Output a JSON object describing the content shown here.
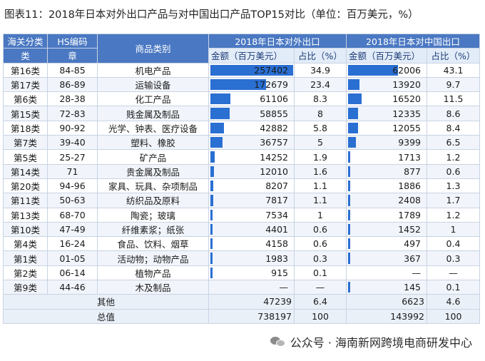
{
  "title": "图表11：2018年日本对外出口产品与对中国出口产品TOP15对比（单位：百万美元，%）",
  "headers": {
    "col1_top": "海关分类",
    "col1_bottom": "类",
    "col2_top": "HS编码",
    "col2_bottom": "章",
    "col3": "商品类别",
    "group_world": "2018年日本对外出口",
    "group_china": "2018年日本对中国出口",
    "amount": "金额（百万美元）",
    "share": "占比（%）"
  },
  "rows": [
    {
      "cls": "第16类",
      "hs": "84-85",
      "name": "机电产品",
      "world_amount": "257402",
      "world_share": "34.9",
      "china_amount": "62006",
      "china_share": "43.1",
      "world_value": 257402,
      "china_value": 62006
    },
    {
      "cls": "第17类",
      "hs": "86-89",
      "name": "运输设备",
      "world_amount": "172679",
      "world_share": "23.4",
      "china_amount": "13920",
      "china_share": "9.7",
      "world_value": 172679,
      "china_value": 13920
    },
    {
      "cls": "第6类",
      "hs": "28-38",
      "name": "化工产品",
      "world_amount": "61106",
      "world_share": "8.3",
      "china_amount": "16520",
      "china_share": "11.5",
      "world_value": 61106,
      "china_value": 16520
    },
    {
      "cls": "第15类",
      "hs": "72-83",
      "name": "贱金属及制品",
      "world_amount": "58855",
      "world_share": "8",
      "china_amount": "12335",
      "china_share": "8.6",
      "world_value": 58855,
      "china_value": 12335
    },
    {
      "cls": "第18类",
      "hs": "90-92",
      "name": "光学、钟表、医疗设备",
      "world_amount": "42882",
      "world_share": "5.8",
      "china_amount": "12055",
      "china_share": "8.4",
      "world_value": 42882,
      "china_value": 12055
    },
    {
      "cls": "第7类",
      "hs": "39-40",
      "name": "塑料、橡胶",
      "world_amount": "36757",
      "world_share": "5",
      "china_amount": "9399",
      "china_share": "6.5",
      "world_value": 36757,
      "china_value": 9399
    },
    {
      "cls": "第5类",
      "hs": "25-27",
      "name": "矿产品",
      "world_amount": "14252",
      "world_share": "1.9",
      "china_amount": "1713",
      "china_share": "1.2",
      "world_value": 14252,
      "china_value": 1713
    },
    {
      "cls": "第14类",
      "hs": "71",
      "name": "贵金属及制品",
      "world_amount": "12010",
      "world_share": "1.6",
      "china_amount": "877",
      "china_share": "0.6",
      "world_value": 12010,
      "china_value": 877
    },
    {
      "cls": "第20类",
      "hs": "94-96",
      "name": "家具、玩具、杂项制品",
      "world_amount": "8207",
      "world_share": "1.1",
      "china_amount": "1886",
      "china_share": "1.3",
      "world_value": 8207,
      "china_value": 1886
    },
    {
      "cls": "第11类",
      "hs": "50-63",
      "name": "纺织品及原料",
      "world_amount": "7817",
      "world_share": "1.1",
      "china_amount": "2408",
      "china_share": "1.7",
      "world_value": 7817,
      "china_value": 2408
    },
    {
      "cls": "第13类",
      "hs": "68-70",
      "name": "陶瓷；玻璃",
      "world_amount": "7534",
      "world_share": "1",
      "china_amount": "1789",
      "china_share": "1.2",
      "world_value": 7534,
      "china_value": 1789
    },
    {
      "cls": "第10类",
      "hs": "47-49",
      "name": "纤维素浆；纸张",
      "world_amount": "4401",
      "world_share": "0.6",
      "china_amount": "1452",
      "china_share": "1",
      "world_value": 4401,
      "china_value": 1452
    },
    {
      "cls": "第4类",
      "hs": "16-24",
      "name": "食品、饮料、烟草",
      "world_amount": "4158",
      "world_share": "0.6",
      "china_amount": "497",
      "china_share": "0.4",
      "world_value": 4158,
      "china_value": 497
    },
    {
      "cls": "第1类",
      "hs": "01-05",
      "name": "活动物；动物产品",
      "world_amount": "1983",
      "world_share": "0.3",
      "china_amount": "367",
      "china_share": "0.3",
      "world_value": 1983,
      "china_value": 367
    },
    {
      "cls": "第2类",
      "hs": "06-14",
      "name": "植物产品",
      "world_amount": "915",
      "world_share": "0.1",
      "china_amount": "—",
      "china_share": "—",
      "world_value": 915,
      "china_value": 0
    },
    {
      "cls": "第9类",
      "hs": "44-46",
      "name": "木及制品",
      "world_amount": "—",
      "world_share": "—",
      "china_amount": "145",
      "china_share": "0.1",
      "world_value": 0,
      "china_value": 145
    }
  ],
  "others": {
    "label": "其他",
    "world_amount": "47239",
    "world_share": "6.4",
    "china_amount": "6623",
    "china_share": "4.6"
  },
  "total": {
    "label": "总值",
    "world_amount": "738197",
    "world_share": "100",
    "china_amount": "143992",
    "china_share": "100"
  },
  "watermark": {
    "icon": "wechat-icon",
    "text": "公众号 · 海南新网跨境电商研发中心"
  },
  "colors": {
    "header_blue": "#4a78c2",
    "bar_blue": "#2a6fd2",
    "header_light": "#e2ecf8"
  }
}
